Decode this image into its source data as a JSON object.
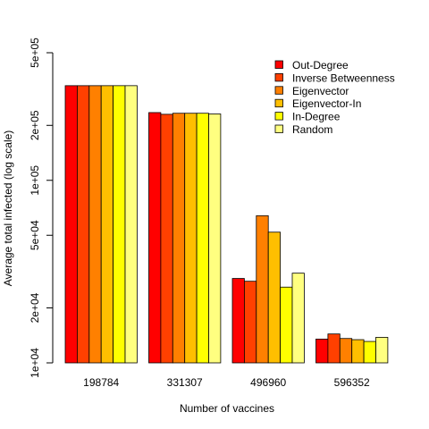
{
  "chart_data": {
    "type": "bar",
    "xlabel": "Number of vaccines",
    "ylabel": "Average total infected (log scale)",
    "y_scale": "log",
    "ylim": [
      10000,
      500000
    ],
    "y_ticks": [
      {
        "value": 10000,
        "label": "1e+04"
      },
      {
        "value": 20000,
        "label": "2e+04"
      },
      {
        "value": 50000,
        "label": "5e+04"
      },
      {
        "value": 100000,
        "label": "1e+05"
      },
      {
        "value": 200000,
        "label": "2e+05"
      },
      {
        "value": 500000,
        "label": "5e+05"
      }
    ],
    "categories": [
      "198784",
      "331307",
      "496960",
      "596352"
    ],
    "series": [
      {
        "name": "Out-Degree",
        "color": "#ff0000",
        "values": [
          330000,
          235000,
          29000,
          13500
        ]
      },
      {
        "name": "Inverse Betweenness",
        "color": "#ff4000",
        "values": [
          330000,
          230000,
          28000,
          14400
        ]
      },
      {
        "name": "Eigenvector",
        "color": "#ff8000",
        "values": [
          330000,
          233000,
          64000,
          13600
        ]
      },
      {
        "name": "Eigenvector-In",
        "color": "#ffbf00",
        "values": [
          330000,
          233000,
          52000,
          13400
        ]
      },
      {
        "name": "In-Degree",
        "color": "#ffff00",
        "values": [
          330000,
          233000,
          26000,
          13100
        ]
      },
      {
        "name": "Random",
        "color": "#ffff80",
        "values": [
          330000,
          231000,
          31000,
          13800
        ]
      }
    ],
    "legend_position": "top-right",
    "grid": false
  }
}
